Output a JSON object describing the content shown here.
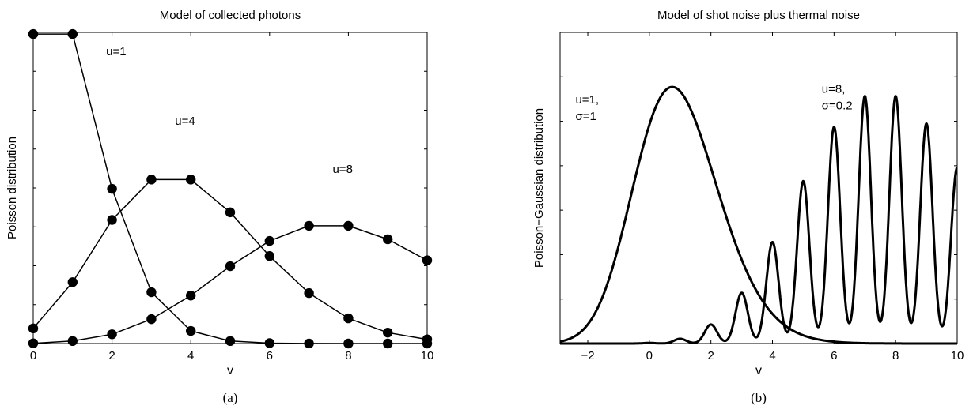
{
  "chart_data": [
    {
      "type": "line",
      "panel_label": "(a)",
      "title": "Model of collected photons",
      "xlabel": "v",
      "ylabel": "Poisson distribution",
      "xlim": [
        0,
        10
      ],
      "ylim": [
        0,
        0.37
      ],
      "xticks": [
        0,
        2,
        4,
        6,
        8,
        10
      ],
      "grid": false,
      "markers": true,
      "x": [
        0,
        1,
        2,
        3,
        4,
        5,
        6,
        7,
        8,
        9,
        10
      ],
      "series": [
        {
          "name": "",
          "values": [
            0.368,
            0.368,
            0.184,
            0.061,
            0.015,
            0.003,
            0.0005,
            0.0001,
            0.0,
            0.0,
            0.0
          ]
        },
        {
          "name": "",
          "values": [
            0.018,
            0.073,
            0.147,
            0.195,
            0.195,
            0.156,
            0.104,
            0.06,
            0.03,
            0.013,
            0.005
          ]
        },
        {
          "name": "",
          "values": [
            0.0003,
            0.003,
            0.011,
            0.029,
            0.057,
            0.092,
            0.122,
            0.14,
            0.14,
            0.124,
            0.099
          ]
        }
      ],
      "annotations": [
        {
          "text": "u=1",
          "x": 1.85,
          "y": 0.343
        },
        {
          "text": "u=4",
          "x": 3.6,
          "y": 0.26
        },
        {
          "text": "u=8",
          "x": 7.6,
          "y": 0.203
        }
      ]
    },
    {
      "type": "line",
      "panel_label": "(b)",
      "title": "Model of shot noise plus thermal noise",
      "xlabel": "v",
      "ylabel": "Poisson−Gaussian distribution",
      "xlim": [
        -2.9,
        10
      ],
      "ylim": [
        0,
        0.35
      ],
      "xticks": [
        -2,
        0,
        2,
        4,
        6,
        8,
        10
      ],
      "xtick_labels": [
        "−2",
        "0",
        "2",
        "4",
        "6",
        "8",
        "10"
      ],
      "grid": false,
      "markers": false,
      "series": [
        {
          "name": "",
          "u": 1,
          "sigma": 1
        },
        {
          "name": "",
          "u": 8,
          "sigma": 0.2
        }
      ],
      "annotations": [
        {
          "lines": [
            "u=1,",
            "σ=1"
          ],
          "x": -2.4,
          "y": 0.27
        },
        {
          "lines": [
            "u=8,",
            "σ=0.2"
          ],
          "x": 5.6,
          "y": 0.282
        }
      ]
    }
  ]
}
